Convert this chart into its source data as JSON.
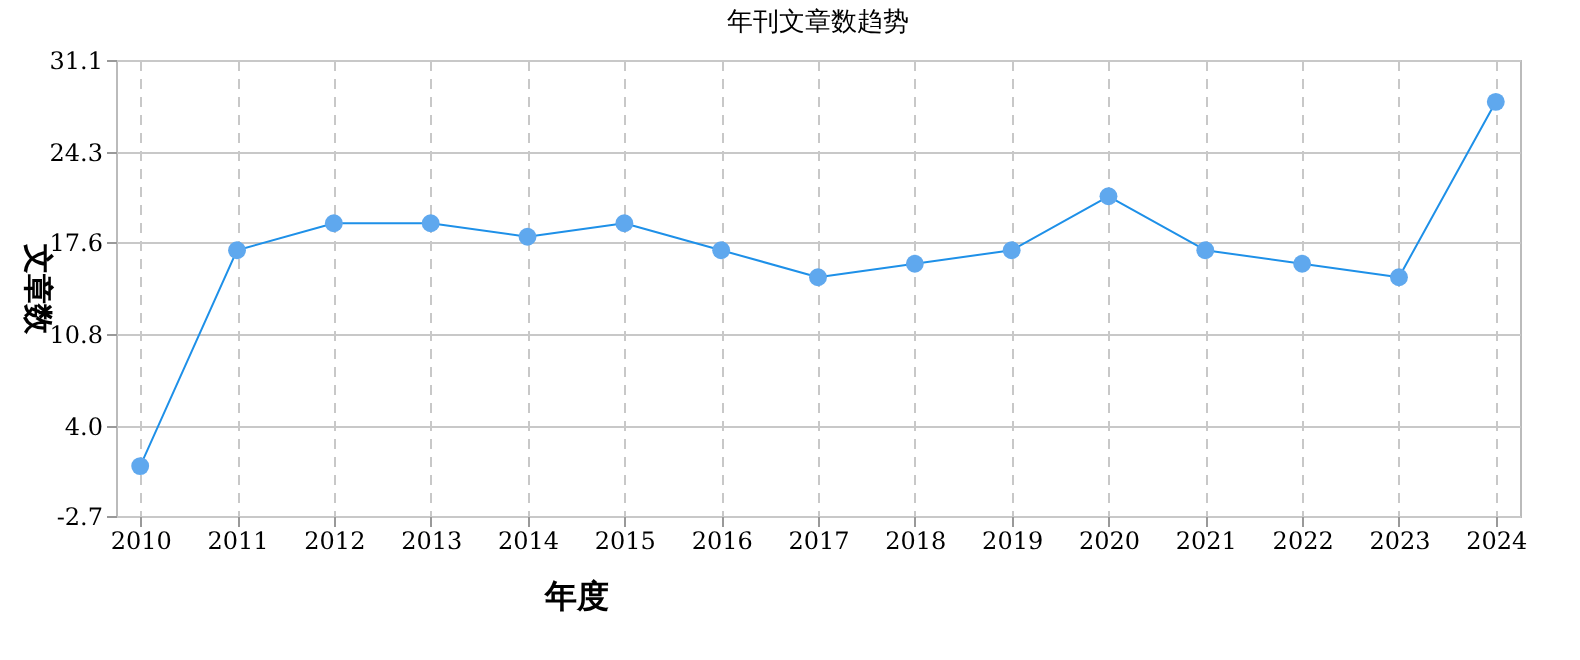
{
  "chart_data": {
    "type": "line",
    "title": "年刊文章数趋势",
    "xlabel": "年度",
    "ylabel": "文章数",
    "categories": [
      "2010",
      "2011",
      "2012",
      "2013",
      "2014",
      "2015",
      "2016",
      "2017",
      "2018",
      "2019",
      "2020",
      "2021",
      "2022",
      "2023",
      "2024"
    ],
    "series": [
      {
        "color": "#1e90e8",
        "values": [
          1,
          17,
          19,
          19,
          18,
          19,
          17,
          15,
          16,
          17,
          21,
          17,
          16,
          15,
          28
        ]
      }
    ],
    "ylim": [
      -2.7,
      31.1
    ],
    "yticks": [
      -2.7,
      {
        "value": 4,
        "label": "4.0"
      },
      10.8,
      17.6,
      24.3,
      31.1
    ],
    "grid": true,
    "marker": "circle",
    "line_style": "solid"
  }
}
